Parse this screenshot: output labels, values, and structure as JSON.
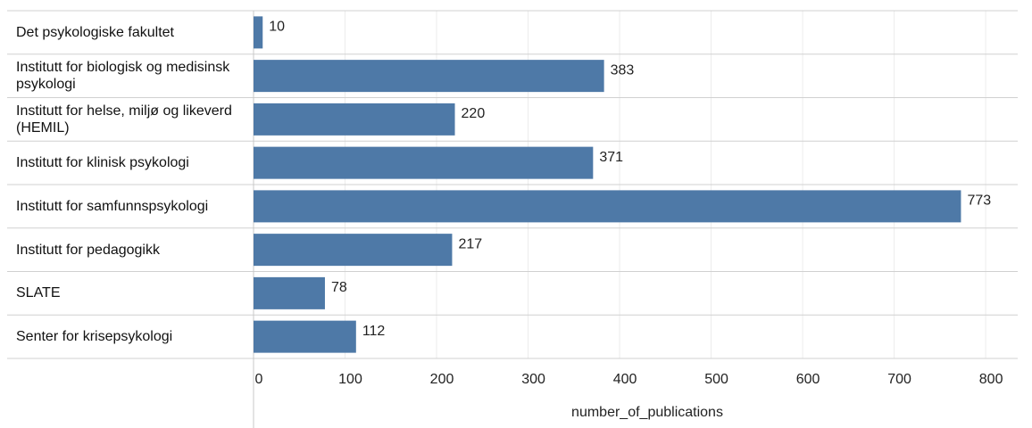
{
  "chart_data": {
    "type": "barh",
    "categories": [
      "Det psykologiske fakultet",
      "Institutt for biologisk og medisinsk psykologi",
      "Institutt for helse, miljø og likeverd (HEMIL)",
      "Institutt for klinisk psykologi",
      "Institutt for samfunnspsykologi",
      "Institutt for pedagogikk",
      "SLATE",
      "Senter for krisepsykologi"
    ],
    "values": [
      10,
      383,
      220,
      371,
      773,
      217,
      78,
      112
    ],
    "color": "#4e79a7",
    "xlabel": "number_of_publications",
    "xlim": [
      0,
      835
    ],
    "xticks": [
      0,
      100,
      200,
      300,
      400,
      500,
      600,
      700,
      800
    ],
    "grid": true
  }
}
